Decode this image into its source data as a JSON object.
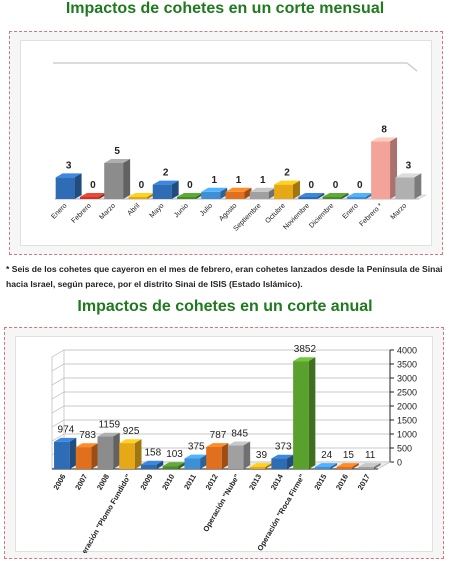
{
  "page": {
    "title_monthly": "Impactos de cohetes en un corte mensual",
    "title_yearly": "Impactos de cohetes en un corte anual",
    "footnote": "* Seis de los cohetes que cayeron en el mes de febrero, eran cohetes lanzados desde la Península de Sinai hacia Israel, según parece, por el distrito Sinai de ISIS (Estado Islámico)."
  },
  "chart_data": [
    {
      "type": "bar",
      "title": "Impactos de cohetes en un corte mensual",
      "categories": [
        "Enero",
        "Febrero",
        "Marzo",
        "Abril",
        "Mayo",
        "Junio",
        "Julio",
        "Agosto",
        "Septiembre",
        "Octubre",
        "Noviembre",
        "Diciembre",
        "Enero",
        "Febrero *",
        "Marzo"
      ],
      "values": [
        3,
        0,
        5,
        0,
        2,
        0,
        1,
        1,
        1,
        2,
        0,
        0,
        0,
        8,
        3
      ],
      "colors": [
        "#2e6db5",
        "#c0392b",
        "#8c8c8c",
        "#e6a817",
        "#2e6db5",
        "#4a8a2a",
        "#3f8fd6",
        "#e0701e",
        "#a0a0a0",
        "#e6a817",
        "#2e6db5",
        "#4a8a2a",
        "#3f8fd6",
        "#f3a39a",
        "#b0b0b0"
      ],
      "data_labels": true,
      "ylim": [
        0,
        10
      ],
      "grid": false
    },
    {
      "type": "bar",
      "title": "Impactos de cohetes en un corte anual",
      "categories": [
        "2006",
        "2007",
        "2008",
        "Operación \"Plomo Fundido\"",
        "2009",
        "2010",
        "2011",
        "2012",
        "Operación \"Nube\"",
        "2013",
        "2014",
        "Operación \"Roca Firme\"",
        "2015",
        "2016",
        "2017"
      ],
      "values": [
        974,
        783,
        1159,
        925,
        158,
        103,
        375,
        787,
        845,
        39,
        373,
        3852,
        24,
        15,
        11
      ],
      "colors": [
        "#2e6db5",
        "#e0701e",
        "#8c8c8c",
        "#e6a817",
        "#2e6db5",
        "#4a8a2a",
        "#3f8fd6",
        "#e0701e",
        "#a0a0a0",
        "#e6a817",
        "#2e6db5",
        "#5aa02c",
        "#3f8fd6",
        "#e0701e",
        "#a0a0a0"
      ],
      "yticks": [
        0,
        500,
        1000,
        1500,
        2000,
        2500,
        3000,
        3500,
        4000
      ],
      "ylim": [
        0,
        4000
      ],
      "data_labels": true,
      "grid": true,
      "y_axis_side": "right"
    }
  ]
}
